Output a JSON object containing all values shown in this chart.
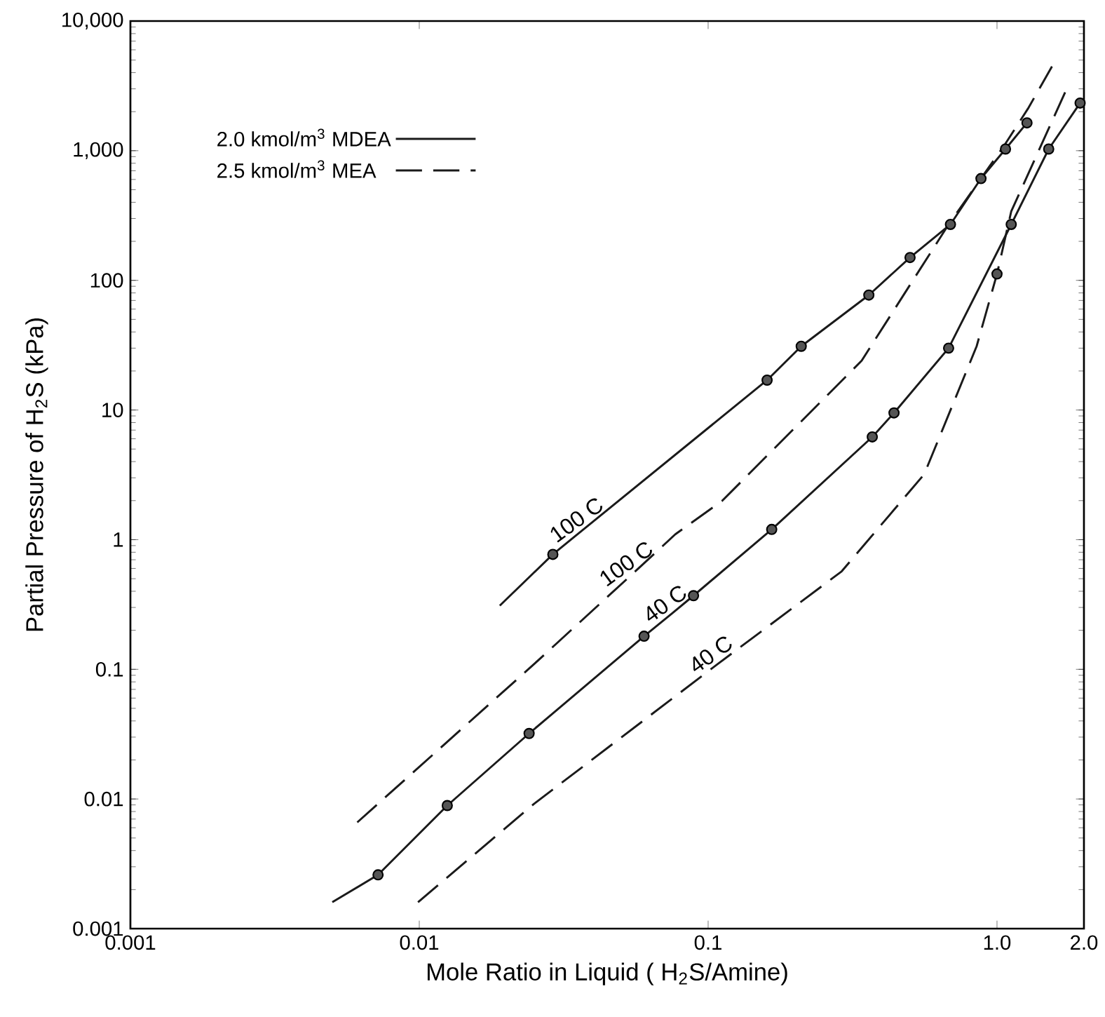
{
  "chart_data": {
    "type": "line",
    "xlabel": "Mole Ratio in Liquid ( H$_{2}$S/Amine)",
    "ylabel": "Partial Pressure of H$_{2}$S (kPa)",
    "log": "xy",
    "xlim": [
      0.001,
      2
    ],
    "ylim": [
      0.001,
      10000
    ],
    "xticks": [
      0.001,
      0.01,
      0.1,
      {
        "value": 1,
        "label": "1.0"
      },
      {
        "value": 2,
        "label": "2.0"
      }
    ],
    "yticks": [
      0.001,
      0.01,
      0.1,
      1,
      10,
      100,
      {
        "value": 1000,
        "label": "1,000"
      },
      {
        "value": 10000,
        "label": "10,000"
      }
    ],
    "legend": "top left",
    "series": [
      {
        "name": "2.0 kmol/m$^{3}$ MDEA",
        "color": "#1a1a1a",
        "line_style": "solid",
        "marker": "none",
        "x": [
          0.019,
          0.029,
          0.037,
          0.16,
          0.21,
          0.36,
          0.5,
          0.69,
          0.88,
          1.07,
          1.27
        ],
        "values": [
          0.31,
          0.77,
          1.2,
          17,
          31,
          77,
          150,
          270,
          610,
          1030,
          1640
        ]
      },
      {
        "color": "#1a1a1a",
        "line_style": "solid",
        "marker": "none",
        "x": [
          0.005,
          0.0072,
          0.0125,
          0.024,
          0.06,
          0.075,
          0.089,
          0.166,
          0.37,
          0.44,
          0.68,
          1.12,
          1.51,
          1.94
        ],
        "values": [
          0.0016,
          0.0026,
          0.0089,
          0.032,
          0.18,
          0.27,
          0.37,
          1.2,
          6.2,
          9.5,
          30,
          270,
          1030,
          2330
        ]
      },
      {
        "name": "2.5 kmol/m$^{3}$ MEA",
        "color": "#1a1a1a",
        "line_style": "dashed",
        "marker": "none",
        "x": [
          0.0061,
          0.025,
          0.055,
          0.077,
          0.112,
          0.34,
          0.68,
          1.06,
          1.28,
          1.55
        ],
        "values": [
          0.0066,
          0.11,
          0.55,
          1.1,
          2.0,
          24,
          270,
          1100,
          2110,
          4460
        ]
      },
      {
        "color": "#1a1a1a",
        "line_style": "dashed",
        "marker": "none",
        "x": [
          0.0099,
          0.025,
          0.108,
          0.29,
          0.56,
          0.85,
          1.0,
          1.12,
          1.75
        ],
        "values": [
          0.0016,
          0.0092,
          0.11,
          0.57,
          3.2,
          31,
          112,
          340,
          3060
        ]
      },
      {
        "type": "scatter",
        "color": "#555555",
        "marker": "circle",
        "x": [
          0.029,
          0.16,
          0.21,
          0.36,
          0.5,
          0.69,
          0.88,
          1.07,
          1.27
        ],
        "values": [
          0.77,
          17,
          31,
          77,
          150,
          270,
          610,
          1030,
          1640
        ]
      },
      {
        "type": "scatter",
        "color": "#555555",
        "marker": "circle",
        "x": [
          0.0072,
          0.0125,
          0.024,
          0.06,
          0.089,
          0.166,
          0.37,
          0.44,
          0.68,
          1.12,
          1.51,
          1.94
        ],
        "values": [
          0.0026,
          0.0089,
          0.032,
          0.18,
          0.37,
          1.2,
          6.2,
          9.5,
          30,
          270,
          1030,
          2330
        ]
      },
      {
        "type": "scatter",
        "color": "#555555",
        "marker": "circle",
        "x": [
          1.0
        ],
        "values": [
          112
        ]
      }
    ],
    "annotations": [
      {
        "text": "100 C",
        "x": 0.037,
        "y": 1.2
      },
      {
        "text": "100 C",
        "x": 0.055,
        "y": 0.55
      },
      {
        "text": "40 C",
        "x": 0.075,
        "y": 0.27
      },
      {
        "text": "40 C",
        "x": 0.108,
        "y": 0.11
      }
    ]
  }
}
